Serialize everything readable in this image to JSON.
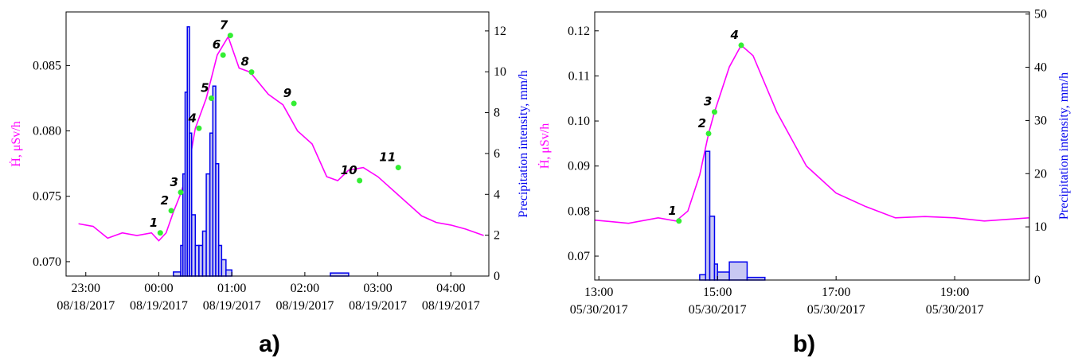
{
  "chart_data": [
    {
      "type": "line",
      "panel_label": "a)",
      "y_label": "Ḣ, μSv/h",
      "y2_label": "Precipitation intensity, mm/h",
      "xlim": [
        -1.27,
        4.52
      ],
      "xticks": [
        {
          "value": -1,
          "label": "23:00 08/18/2017"
        },
        {
          "value": 0,
          "label": "00:00 08/19/2017"
        },
        {
          "value": 1,
          "label": "01:00 08/19/2017"
        },
        {
          "value": 2,
          "label": "02:00 08/19/2017"
        },
        {
          "value": 3,
          "label": "03:00 08/19/2017"
        },
        {
          "value": 4,
          "label": "04:00 08/19/2017"
        }
      ],
      "ylim": [
        0.0689,
        0.0891
      ],
      "yticks": [
        {
          "value": 0.07,
          "label": "0.070"
        },
        {
          "value": 0.075,
          "label": "0.075"
        },
        {
          "value": 0.08,
          "label": "0.080"
        },
        {
          "value": 0.085,
          "label": "0.085"
        }
      ],
      "y2lim": [
        0,
        12.93
      ],
      "y2ticks": [
        0,
        2,
        4,
        6,
        8,
        10,
        12
      ],
      "series": [
        {
          "color": "#ff00ff",
          "x": [
            -1.1,
            -0.9,
            -0.7,
            -0.5,
            -0.3,
            -0.1,
            0.0,
            0.1,
            0.2,
            0.3,
            0.4,
            0.5,
            0.65,
            0.8,
            0.95,
            1.1,
            1.25,
            1.5,
            1.7,
            1.9,
            2.1,
            2.3,
            2.45,
            2.6,
            2.8,
            3.0,
            3.3,
            3.6,
            3.8,
            4.0,
            4.2,
            4.45
          ],
          "values": [
            0.0729,
            0.0727,
            0.0718,
            0.0722,
            0.072,
            0.0722,
            0.0716,
            0.0722,
            0.0738,
            0.0752,
            0.077,
            0.0802,
            0.0825,
            0.0858,
            0.0872,
            0.0848,
            0.0845,
            0.0828,
            0.082,
            0.08,
            0.079,
            0.0765,
            0.0762,
            0.077,
            0.0772,
            0.0765,
            0.075,
            0.0735,
            0.073,
            0.0728,
            0.0725,
            0.072
          ]
        },
        {
          "color": "#0000ee",
          "fill": "#c8c8f2",
          "axis": "y2",
          "step": true,
          "bins": [
            0.2,
            0.3,
            0.33,
            0.36,
            0.39,
            0.42,
            0.45,
            0.5,
            0.55,
            0.6,
            0.65,
            0.7,
            0.74,
            0.78,
            0.82,
            0.86,
            0.92,
            1.0,
            2.35,
            2.6,
            2.75
          ],
          "values": [
            0.2,
            1.5,
            5,
            9,
            12.2,
            7,
            3,
            1.5,
            1.5,
            2.2,
            5,
            7,
            9.3,
            5.5,
            1.5,
            0.8,
            0.3,
            0,
            0.15,
            0
          ]
        }
      ],
      "annotations": [
        {
          "label": "1",
          "x": 0.02,
          "y": 0.0722
        },
        {
          "label": "2",
          "x": 0.17,
          "y": 0.0739
        },
        {
          "label": "3",
          "x": 0.3,
          "y": 0.0753
        },
        {
          "label": "4",
          "x": 0.55,
          "y": 0.0802
        },
        {
          "label": "5",
          "x": 0.72,
          "y": 0.0825
        },
        {
          "label": "6",
          "x": 0.88,
          "y": 0.0858
        },
        {
          "label": "7",
          "x": 0.98,
          "y": 0.0873
        },
        {
          "label": "8",
          "x": 1.27,
          "y": 0.0845
        },
        {
          "label": "9",
          "x": 1.85,
          "y": 0.0821
        },
        {
          "label": "10",
          "x": 2.75,
          "y": 0.0762
        },
        {
          "label": "11",
          "x": 3.28,
          "y": 0.0772
        }
      ],
      "marker_color": "#33ee33"
    },
    {
      "type": "line",
      "panel_label": "b)",
      "y_label": "Ḣ, μSv/h",
      "y2_label": "Precipitation intensity, mm/h",
      "xlim": [
        12.93,
        20.26
      ],
      "xticks": [
        {
          "value": 13,
          "label": "13:00 05/30/2017"
        },
        {
          "value": 15,
          "label": "15:00 05/30/2017"
        },
        {
          "value": 17,
          "label": "17:00 05/30/2017"
        },
        {
          "value": 19,
          "label": "19:00 05/30/2017"
        }
      ],
      "ylim": [
        0.0647,
        0.1242
      ],
      "yticks": [
        {
          "value": 0.07,
          "label": "0.07"
        },
        {
          "value": 0.08,
          "label": "0.08"
        },
        {
          "value": 0.09,
          "label": "0.09"
        },
        {
          "value": 0.1,
          "label": "0.10"
        },
        {
          "value": 0.11,
          "label": "0.11"
        },
        {
          "value": 0.12,
          "label": "0.12"
        }
      ],
      "y2lim": [
        0,
        50.4
      ],
      "y2ticks": [
        0,
        10,
        20,
        30,
        40,
        50
      ],
      "series": [
        {
          "color": "#ff00ff",
          "x": [
            12.93,
            13.5,
            14.0,
            14.3,
            14.5,
            14.7,
            14.85,
            14.95,
            15.2,
            15.4,
            15.6,
            16.0,
            16.5,
            17.0,
            17.5,
            18.0,
            18.5,
            19.0,
            19.5,
            20.25
          ],
          "values": [
            0.078,
            0.0773,
            0.0785,
            0.0778,
            0.08,
            0.088,
            0.0972,
            0.102,
            0.112,
            0.1168,
            0.1145,
            0.102,
            0.09,
            0.084,
            0.081,
            0.0785,
            0.0788,
            0.0785,
            0.0778,
            0.0785
          ]
        },
        {
          "color": "#0000ee",
          "fill": "#c8c8f2",
          "axis": "y2",
          "step": true,
          "bins": [
            14.0,
            14.7,
            14.8,
            14.87,
            14.95,
            15.0,
            15.2,
            15.5,
            15.8,
            20.0
          ],
          "values": [
            0,
            1,
            24.2,
            12,
            3,
            1.5,
            3.4,
            0.5,
            0
          ]
        }
      ],
      "annotations": [
        {
          "label": "1",
          "x": 14.35,
          "y": 0.0778
        },
        {
          "label": "2",
          "x": 14.85,
          "y": 0.0972
        },
        {
          "label": "3",
          "x": 14.95,
          "y": 0.102
        },
        {
          "label": "4",
          "x": 15.4,
          "y": 0.1168
        }
      ],
      "marker_color": "#33ee33"
    }
  ]
}
